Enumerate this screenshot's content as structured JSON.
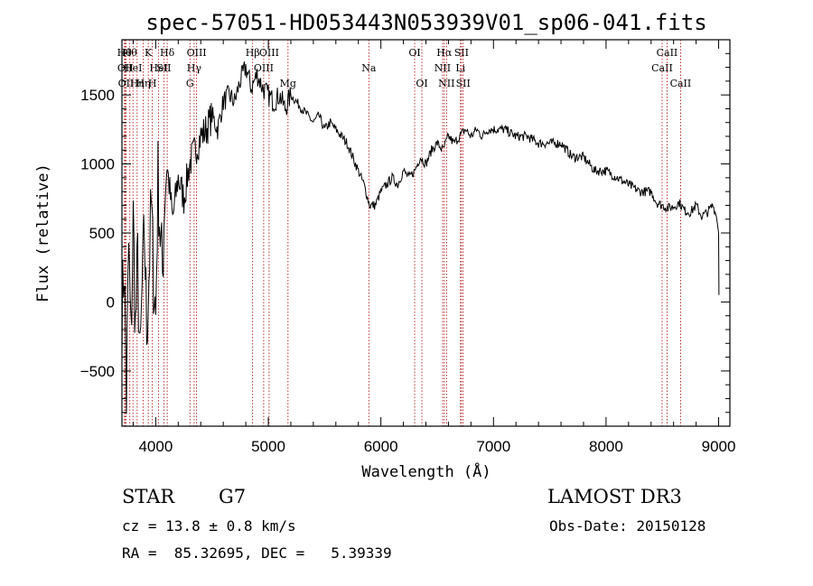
{
  "chart_data": {
    "type": "line",
    "title": "spec-57051-HD053443N053939V01_sp06-041.fits",
    "xlabel": "Wavelength (Å)",
    "ylabel": "Flux (relative)",
    "xlim": [
      3700,
      9100
    ],
    "ylim": [
      -900,
      1900
    ],
    "xticks": [
      4000,
      5000,
      6000,
      7000,
      8000,
      9000
    ],
    "xtick_labels": [
      "4000",
      "5000",
      "6000",
      "7000",
      "8000",
      "9000"
    ],
    "yticks": [
      -500,
      0,
      500,
      1000,
      1500
    ],
    "ytick_labels": [
      "−500",
      "0",
      "500",
      "1000",
      "1500"
    ],
    "grid": false,
    "line_color": "#000000",
    "marker_color": "#aa0000",
    "series": [
      {
        "x": [
          3700,
          3720,
          3740,
          3760,
          3780,
          3800,
          3820,
          3840,
          3860,
          3880,
          3900,
          3920,
          3940,
          3960,
          3980,
          4000,
          4020,
          4040,
          4060,
          4080,
          4100,
          4150,
          4200,
          4250,
          4300,
          4350,
          4400,
          4450,
          4500,
          4550,
          4600,
          4650,
          4700,
          4750,
          4800,
          4850,
          4900,
          4950,
          5000,
          5050,
          5100,
          5150,
          5200,
          5250,
          5300,
          5350,
          5400,
          5450,
          5500,
          5550,
          5600,
          5650,
          5700,
          5750,
          5800,
          5850,
          5900,
          5950,
          6000,
          6050,
          6100,
          6150,
          6200,
          6250,
          6300,
          6350,
          6400,
          6450,
          6500,
          6550,
          6600,
          6650,
          6700,
          6750,
          6800,
          6850,
          6900,
          6950,
          7000,
          7100,
          7200,
          7300,
          7400,
          7500,
          7600,
          7700,
          7800,
          7900,
          8000,
          8100,
          8200,
          8300,
          8400,
          8450,
          8500,
          8550,
          8600,
          8650,
          8700,
          8750,
          8800,
          8850,
          8900,
          8950,
          8980,
          9000,
          9003
        ],
        "y": [
          -100,
          300,
          -700,
          400,
          -300,
          600,
          -200,
          300,
          -500,
          100,
          500,
          -200,
          200,
          700,
          200,
          -100,
          900,
          500,
          200,
          800,
          1000,
          600,
          900,
          750,
          1000,
          1100,
          1200,
          1250,
          1350,
          1250,
          1450,
          1500,
          1450,
          1600,
          1700,
          1550,
          1650,
          1550,
          1500,
          1450,
          1500,
          1400,
          1500,
          1450,
          1400,
          1350,
          1300,
          1350,
          1250,
          1300,
          1250,
          1200,
          1150,
          1050,
          950,
          850,
          700,
          700,
          800,
          850,
          900,
          850,
          950,
          900,
          950,
          1050,
          1000,
          1100,
          1150,
          1100,
          1200,
          1150,
          1200,
          1250,
          1200,
          1250,
          1200,
          1250,
          1250,
          1250,
          1200,
          1200,
          1150,
          1150,
          1150,
          1050,
          1050,
          950,
          950,
          900,
          850,
          800,
          800,
          720,
          700,
          680,
          690,
          720,
          660,
          650,
          700,
          620,
          650,
          700,
          620,
          500,
          50
        ]
      }
    ],
    "line_markers": [
      {
        "x": 3722,
        "row": 1,
        "label": "Hθ"
      },
      {
        "x": 3730,
        "row": 2,
        "label": "OII"
      },
      {
        "x": 3736,
        "row": 3,
        "label": "OII"
      },
      {
        "x": 3770,
        "row": 1,
        "label": "Hθ"
      },
      {
        "x": 3798,
        "row": 2,
        "label": "HeI"
      },
      {
        "x": 3835,
        "row": 3,
        "label": "Hη"
      },
      {
        "x": 3889,
        "row": 3,
        "label": "Hη"
      },
      {
        "x": 3934,
        "row": 1,
        "label": "K"
      },
      {
        "x": 3970,
        "row": 3,
        "label": "H"
      },
      {
        "x": 4026,
        "row": 2,
        "label": "HeI"
      },
      {
        "x": 4072,
        "row": 2,
        "label": "SII"
      },
      {
        "x": 4102,
        "row": 1,
        "label": "Hδ"
      },
      {
        "x": 4304,
        "row": 3,
        "label": "G"
      },
      {
        "x": 4341,
        "row": 2,
        "label": "Hγ"
      },
      {
        "x": 4363,
        "row": 1,
        "label": "OIII"
      },
      {
        "x": 4861,
        "row": 1,
        "label": "Hβ"
      },
      {
        "x": 4959,
        "row": 2,
        "label": "OIII"
      },
      {
        "x": 5007,
        "row": 1,
        "label": "OIII"
      },
      {
        "x": 5175,
        "row": 3,
        "label": "Mg"
      },
      {
        "x": 5893,
        "row": 2,
        "label": "Na"
      },
      {
        "x": 6300,
        "row": 1,
        "label": "OI"
      },
      {
        "x": 6364,
        "row": 3,
        "label": "OI"
      },
      {
        "x": 6548,
        "row": 2,
        "label": "NII"
      },
      {
        "x": 6563,
        "row": 1,
        "label": "Hα"
      },
      {
        "x": 6583,
        "row": 3,
        "label": "NII"
      },
      {
        "x": 6707,
        "row": 2,
        "label": "Li"
      },
      {
        "x": 6716,
        "row": 1,
        "label": "SII"
      },
      {
        "x": 6731,
        "row": 3,
        "label": "SII"
      },
      {
        "x": 8498,
        "row": 2,
        "label": "CaII"
      },
      {
        "x": 8542,
        "row": 1,
        "label": "CaII"
      },
      {
        "x": 8662,
        "row": 3,
        "label": "CaII"
      }
    ]
  },
  "info": {
    "class_label": "STAR",
    "subclass": "G7",
    "survey": "LAMOST DR3",
    "cz": "cz = 13.8 ± 0.8 km/s",
    "obs_date": "Obs-Date: 20150128",
    "coords": "RA =  85.32695, DEC =   5.39339"
  }
}
